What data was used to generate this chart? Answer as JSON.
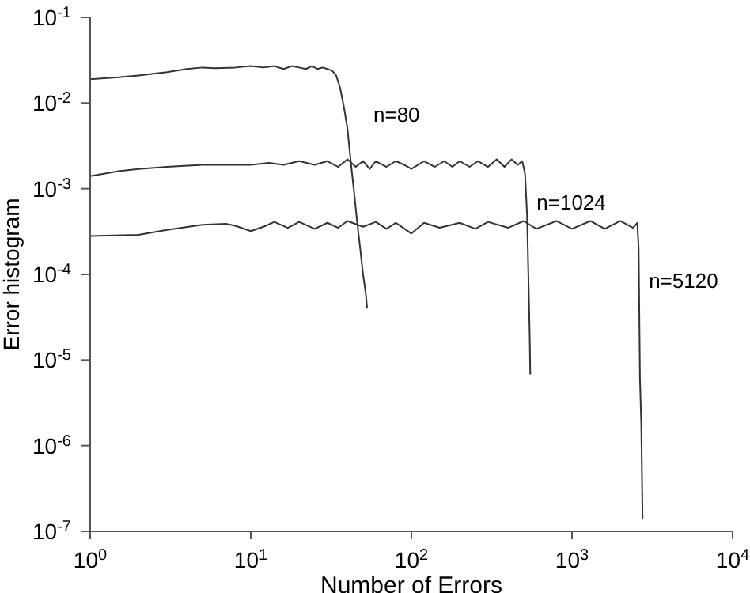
{
  "chart_data": {
    "type": "line",
    "xlabel": "Number of Errors",
    "ylabel": "Error histogram",
    "log": "xy",
    "marker": "none",
    "line_style": "solid",
    "xlim": [
      1,
      10000
    ],
    "ylim": [
      1e-07,
      0.1
    ],
    "xticks": [
      {
        "value": 1,
        "label": "10$^{0}$"
      },
      {
        "value": 10,
        "label": "10$^{1}$"
      },
      {
        "value": 100,
        "label": "10$^{2}$"
      },
      {
        "value": 1000,
        "label": "10$^{3}$"
      },
      {
        "value": 10000,
        "label": "10$^{4}$"
      }
    ],
    "yticks": [
      {
        "value": 1e-07,
        "label": "10$^{-7}$"
      },
      {
        "value": 1e-06,
        "label": "10$^{-6}$"
      },
      {
        "value": 1e-05,
        "label": "10$^{-5}$"
      },
      {
        "value": 0.0001,
        "label": "10$^{-4}$"
      },
      {
        "value": 0.001,
        "label": "10$^{-3}$"
      },
      {
        "value": 0.01,
        "label": "10$^{-2}$"
      },
      {
        "value": 0.1,
        "label": "10$^{-1}$"
      }
    ],
    "annotations": [
      "n=80",
      "n=1024",
      "n=5120"
    ],
    "series": [
      {
        "color": "#333333",
        "x": [
          1,
          1.5,
          2,
          3,
          4,
          5,
          6,
          8,
          10,
          12,
          14,
          16,
          18,
          20,
          22,
          24,
          26,
          28,
          30,
          32,
          34,
          36,
          38,
          40,
          42,
          44,
          46,
          48,
          50,
          52,
          53
        ],
        "values": [
          0.019,
          0.02,
          0.021,
          0.023,
          0.025,
          0.026,
          0.0255,
          0.026,
          0.027,
          0.026,
          0.027,
          0.025,
          0.027,
          0.026,
          0.025,
          0.027,
          0.025,
          0.026,
          0.025,
          0.024,
          0.021,
          0.015,
          0.009,
          0.005,
          0.002,
          0.0009,
          0.0004,
          0.0002,
          0.0001,
          6e-05,
          4e-05
        ]
      },
      {
        "color": "#333333",
        "x": [
          1,
          1.5,
          2,
          3,
          5,
          8,
          10,
          13,
          16,
          20,
          25,
          30,
          35,
          40,
          45,
          50,
          55,
          60,
          70,
          80,
          90,
          100,
          120,
          140,
          160,
          180,
          200,
          230,
          260,
          300,
          340,
          380,
          420,
          460,
          490,
          510,
          525,
          535,
          545,
          550
        ],
        "values": [
          0.0014,
          0.0016,
          0.0017,
          0.0018,
          0.0019,
          0.0019,
          0.0019,
          0.002,
          0.0019,
          0.0021,
          0.0019,
          0.0021,
          0.0018,
          0.0022,
          0.0018,
          0.0021,
          0.0017,
          0.0021,
          0.0018,
          0.0021,
          0.0019,
          0.0017,
          0.0021,
          0.0018,
          0.0021,
          0.0018,
          0.0021,
          0.0018,
          0.0021,
          0.0018,
          0.0022,
          0.0018,
          0.0022,
          0.0019,
          0.0021,
          0.0015,
          0.0005,
          0.0001,
          2e-05,
          6.8e-06
        ]
      },
      {
        "color": "#333333",
        "x": [
          1,
          2,
          3,
          5,
          7,
          8,
          10,
          12,
          14,
          17,
          20,
          25,
          30,
          35,
          40,
          50,
          60,
          70,
          80,
          100,
          120,
          150,
          200,
          250,
          300,
          400,
          500,
          600,
          800,
          1000,
          1300,
          1600,
          2000,
          2400,
          2550,
          2600,
          2650,
          2700,
          2750
        ],
        "values": [
          0.00028,
          0.00029,
          0.00033,
          0.00038,
          0.00039,
          0.00037,
          0.00032,
          0.00036,
          0.00041,
          0.00035,
          0.00041,
          0.00034,
          0.0004,
          0.00035,
          0.00042,
          0.00036,
          0.00041,
          0.00034,
          0.0004,
          0.0003,
          0.0004,
          0.00035,
          0.0004,
          0.00034,
          0.00041,
          0.00035,
          0.00042,
          0.00034,
          0.00042,
          0.00034,
          0.00042,
          0.00034,
          0.00042,
          0.00035,
          0.0004,
          0.0002,
          6e-06,
          1.8e-06,
          1.4e-07
        ]
      }
    ]
  }
}
